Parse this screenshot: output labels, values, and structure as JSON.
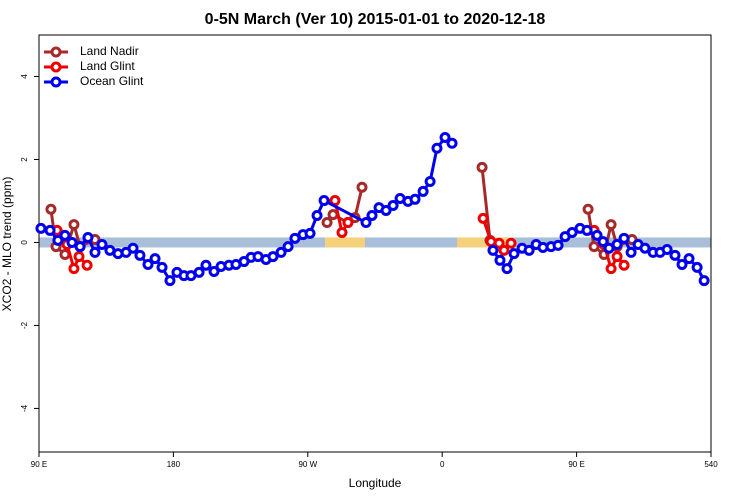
{
  "chart_data": {
    "type": "line",
    "title": "0-5N March (Ver 10)   2015-01-01 to 2020-12-18",
    "x_label": "Longitude",
    "y_label": "XCO2 - MLO trend (ppm)",
    "xlim": [
      90,
      540
    ],
    "ylim": [
      -5.05,
      5.0
    ],
    "xticks": [
      {
        "value": 90,
        "label": "90 E"
      },
      180,
      {
        "value": 270,
        "label": "90 W"
      },
      {
        "value": 360,
        "label": "0"
      },
      {
        "value": 450,
        "label": "90 E"
      },
      540
    ],
    "yticks": [
      -4,
      -2,
      0,
      2,
      4
    ],
    "legend": "top-left",
    "zero_band": {
      "color": "#a9bfd9",
      "highlights": [
        {
          "xlim": [
            281.5,
            308.3
          ],
          "color": "#f5d27a"
        },
        {
          "xlim": [
            370,
            406.7
          ],
          "color": "#f5d27a"
        }
      ]
    },
    "series": [
      {
        "name": "Land Nadir",
        "color": "#a52a2a",
        "x": [
          98,
          101.4,
          107.4,
          113.4,
          117.5,
          127.5,
          200,
          282.9,
          286.9,
          296.9,
          301.6,
          306.3,
          340,
          386.7,
          392,
          420,
          457.7,
          461.7,
          468.4,
          473.1,
          477.1,
          487.1
        ],
        "values": [
          0.8,
          -0.1,
          -0.29,
          0.43,
          -0.1,
          0.07,
          null,
          0.48,
          0.67,
          0.48,
          0.6,
          1.33,
          null,
          1.81,
          0.05,
          null,
          0.8,
          -0.1,
          -0.29,
          0.43,
          -0.1,
          0.07
        ]
      },
      {
        "name": "Land Glint",
        "color": "#ee0000",
        "x": [
          102.1,
          108.8,
          113.4,
          116.8,
          122.2,
          200,
          288.2,
          292.9,
          296.9,
          340,
          387.4,
          392.7,
          398.1,
          401.4,
          406.1,
          420,
          461.7,
          468.4,
          473.1,
          477.1,
          481.8
        ],
        "values": [
          0.29,
          -0.05,
          -0.63,
          -0.34,
          -0.55,
          null,
          1.01,
          0.24,
          0.48,
          null,
          0.58,
          0.02,
          -0.02,
          -0.19,
          -0.02,
          null,
          0.29,
          -0.05,
          -0.63,
          -0.34,
          -0.55
        ]
      },
      {
        "name": "Ocean Glint",
        "color": "#0000ee",
        "x": [
          91.3,
          97.4,
          102.7,
          107.4,
          112.1,
          117.5,
          122.8,
          127.5,
          132.2,
          137.5,
          142.9,
          148.3,
          153,
          157.6,
          163,
          167.7,
          172.4,
          177.7,
          182.4,
          187.1,
          191.8,
          197.2,
          201.8,
          207.2,
          211.9,
          217.2,
          221.9,
          227.3,
          232,
          236.7,
          242,
          246.7,
          252.1,
          256.8,
          261.4,
          266.8,
          271.5,
          276.2,
          280.9,
          309,
          313,
          317.7,
          322.4,
          327.1,
          331.8,
          337.1,
          341.8,
          347.2,
          351.9,
          356.5,
          361.9,
          366.6,
          380,
          394,
          398.7,
          403.4,
          408.1,
          413.5,
          418.2,
          422.9,
          427.5,
          432.9,
          437.6,
          442.3,
          447,
          452.3,
          457,
          463.7,
          467.7,
          471.7,
          477.1,
          481.8,
          486.5,
          491.2,
          495.8,
          501.2,
          505.9,
          510.6,
          515.9,
          520.6,
          525.3,
          530.7,
          535.4
        ],
        "values": [
          0.34,
          0.29,
          0.05,
          0.17,
          0.0,
          -0.1,
          0.12,
          -0.24,
          -0.05,
          -0.19,
          -0.27,
          -0.24,
          -0.14,
          -0.31,
          -0.53,
          -0.39,
          -0.6,
          -0.92,
          -0.72,
          -0.8,
          -0.8,
          -0.72,
          -0.55,
          -0.7,
          -0.58,
          -0.55,
          -0.53,
          -0.46,
          -0.36,
          -0.34,
          -0.41,
          -0.34,
          -0.24,
          -0.1,
          0.1,
          0.19,
          0.22,
          0.65,
          1.01,
          0.48,
          0.65,
          0.84,
          0.77,
          0.89,
          1.06,
          0.99,
          1.04,
          1.23,
          1.47,
          2.27,
          2.53,
          2.39,
          null,
          -0.19,
          -0.43,
          -0.63,
          -0.27,
          -0.14,
          -0.19,
          -0.05,
          -0.12,
          -0.1,
          -0.07,
          0.14,
          0.24,
          0.34,
          0.29,
          0.17,
          0.02,
          -0.14,
          -0.05,
          0.1,
          -0.24,
          -0.05,
          -0.14,
          -0.24,
          -0.24,
          -0.17,
          -0.31,
          -0.53,
          -0.39,
          -0.6,
          -0.92
        ]
      }
    ]
  }
}
